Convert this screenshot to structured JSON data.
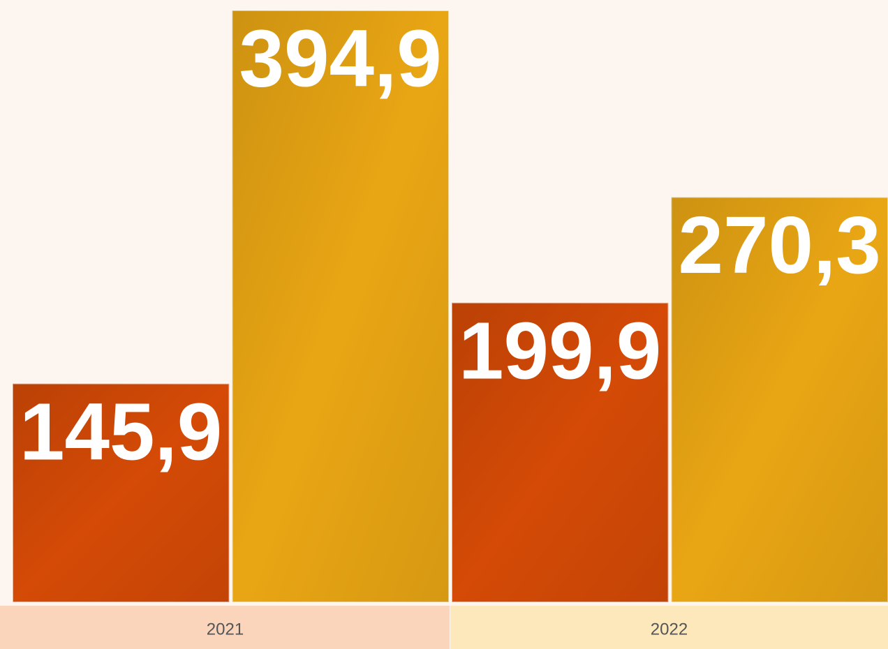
{
  "chart_data": {
    "type": "bar",
    "categories": [
      "2021",
      "2022"
    ],
    "series": [
      {
        "color": "#d44a06",
        "values": [
          145.9,
          199.9
        ],
        "value_labels": [
          "145,9",
          "199,9"
        ]
      },
      {
        "color": "#e9a614",
        "values": [
          394.9,
          270.3
        ],
        "value_labels": [
          "394,9",
          "270,3"
        ]
      }
    ],
    "band_colors": [
      "#fad5bc",
      "#fde8bb"
    ],
    "ylim": [
      0,
      400
    ]
  }
}
